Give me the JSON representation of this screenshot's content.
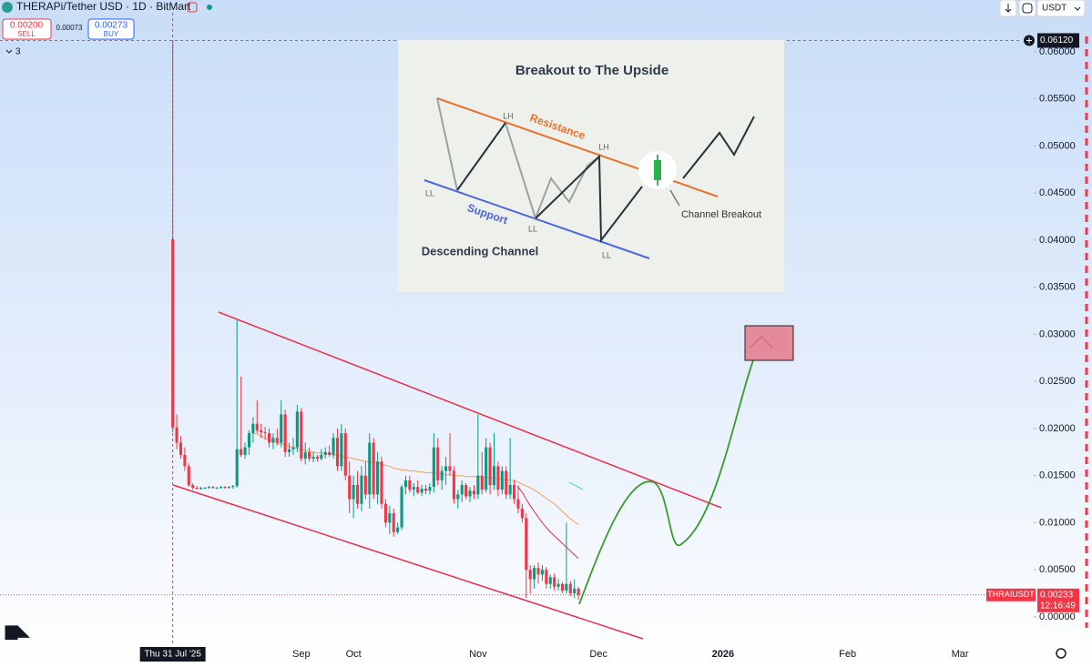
{
  "header": {
    "symbol_title": "THERAPi/Tether USD · 1D · BitMart",
    "sell_price": "0.00200",
    "sell_label": "SELL",
    "spread": "0.00073",
    "buy_price": "0.00273",
    "buy_label": "BUY",
    "indicator_count": "3",
    "currency": "USDT"
  },
  "inset": {
    "title": "Breakout to The Upside",
    "resistance": "Resistance",
    "support": "Support",
    "lh_1": "LH",
    "lh_2": "LH",
    "ll_1": "LL",
    "ll_2": "LL",
    "ll_3": "LL",
    "breakout": "Channel Breakout",
    "channel": "Descending Channel"
  },
  "chart_data": {
    "type": "candlestick",
    "up_color": "#089981",
    "down_color": "#f23645",
    "xlim": [
      -43,
      203
    ],
    "xticks": [
      {
        "value": 32,
        "label": "Sep"
      },
      {
        "value": 45,
        "label": "Oct"
      },
      {
        "value": 76,
        "label": "Nov"
      },
      {
        "value": 106,
        "label": "Dec"
      },
      {
        "value": 137,
        "label": "2026"
      },
      {
        "value": 168,
        "label": "Feb"
      },
      {
        "value": 196,
        "label": "Mar"
      }
    ],
    "ylim": [
      -0.0031,
      0.0615
    ],
    "yticks": [
      {
        "value": 0,
        "label": "0.00000"
      },
      {
        "value": 0.005,
        "label": "0.00500"
      },
      {
        "value": 0.01,
        "label": "0.01000"
      },
      {
        "value": 0.015,
        "label": "0.01500"
      },
      {
        "value": 0.02,
        "label": "0.02000"
      },
      {
        "value": 0.025,
        "label": "0.02500"
      },
      {
        "value": 0.03,
        "label": "0.03000"
      },
      {
        "value": 0.035,
        "label": "0.03500"
      },
      {
        "value": 0.04,
        "label": "0.04000"
      },
      {
        "value": 0.045,
        "label": "0.04500"
      },
      {
        "value": 0.05,
        "label": "0.05000"
      },
      {
        "value": 0.055,
        "label": "0.05500"
      },
      {
        "value": 0.06,
        "label": "0.06000"
      }
    ],
    "candles": [
      [
        0.0401,
        0.0612,
        0.0196,
        0.0201
      ],
      [
        0.0201,
        0.0215,
        0.0178,
        0.0185
      ],
      [
        0.0185,
        0.0192,
        0.0168,
        0.0172
      ],
      [
        0.0172,
        0.018,
        0.0155,
        0.016
      ],
      [
        0.016,
        0.0163,
        0.0138,
        0.014
      ],
      [
        0.014,
        0.0142,
        0.0135,
        0.0137
      ],
      [
        0.0137,
        0.0139,
        0.0135,
        0.0136
      ],
      [
        0.0136,
        0.0138,
        0.0135,
        0.0137
      ],
      [
        0.0137,
        0.0138,
        0.0136,
        0.0137
      ],
      [
        0.0137,
        0.0139,
        0.0136,
        0.0138
      ],
      [
        0.0138,
        0.0139,
        0.0136,
        0.0137
      ],
      [
        0.0137,
        0.0138,
        0.0136,
        0.0137
      ],
      [
        0.0137,
        0.0139,
        0.0136,
        0.0138
      ],
      [
        0.0138,
        0.0139,
        0.0136,
        0.0137
      ],
      [
        0.0137,
        0.0139,
        0.0136,
        0.0138
      ],
      [
        0.0138,
        0.014,
        0.0136,
        0.0139
      ],
      [
        0.0139,
        0.0315,
        0.0137,
        0.0178
      ],
      [
        0.0178,
        0.0255,
        0.017,
        0.0172
      ],
      [
        0.0172,
        0.0185,
        0.0168,
        0.018
      ],
      [
        0.018,
        0.0198,
        0.0172,
        0.0195
      ],
      [
        0.0195,
        0.0212,
        0.0185,
        0.0205
      ],
      [
        0.0205,
        0.023,
        0.0195,
        0.0198
      ],
      [
        0.0198,
        0.0205,
        0.019,
        0.0196
      ],
      [
        0.0196,
        0.0202,
        0.0188,
        0.0195
      ],
      [
        0.0195,
        0.02,
        0.018,
        0.0185
      ],
      [
        0.0185,
        0.0195,
        0.0178,
        0.019
      ],
      [
        0.019,
        0.02,
        0.0182,
        0.0185
      ],
      [
        0.0185,
        0.023,
        0.018,
        0.0215
      ],
      [
        0.0215,
        0.022,
        0.017,
        0.0175
      ],
      [
        0.0175,
        0.0185,
        0.017,
        0.0178
      ],
      [
        0.0178,
        0.019,
        0.0172,
        0.018
      ],
      [
        0.018,
        0.0225,
        0.0175,
        0.0218
      ],
      [
        0.0218,
        0.0222,
        0.0165,
        0.0168
      ],
      [
        0.0168,
        0.0185,
        0.0162,
        0.0175
      ],
      [
        0.0175,
        0.018,
        0.0165,
        0.0168
      ],
      [
        0.0168,
        0.0175,
        0.0164,
        0.017
      ],
      [
        0.017,
        0.0172,
        0.0165,
        0.0168
      ],
      [
        0.0168,
        0.0178,
        0.0166,
        0.0172
      ],
      [
        0.0172,
        0.018,
        0.0168,
        0.0175
      ],
      [
        0.0175,
        0.0182,
        0.017,
        0.0172
      ],
      [
        0.0172,
        0.0195,
        0.0168,
        0.019
      ],
      [
        0.019,
        0.02,
        0.0155,
        0.016
      ],
      [
        0.016,
        0.0205,
        0.0155,
        0.0195
      ],
      [
        0.0195,
        0.02,
        0.0145,
        0.015
      ],
      [
        0.015,
        0.0165,
        0.011,
        0.0125
      ],
      [
        0.0125,
        0.015,
        0.0105,
        0.014
      ],
      [
        0.014,
        0.0155,
        0.0115,
        0.012
      ],
      [
        0.012,
        0.016,
        0.0112,
        0.015
      ],
      [
        0.015,
        0.0165,
        0.0125,
        0.013
      ],
      [
        0.013,
        0.0195,
        0.0115,
        0.0185
      ],
      [
        0.0185,
        0.019,
        0.0125,
        0.013
      ],
      [
        0.013,
        0.0175,
        0.012,
        0.0165
      ],
      [
        0.0165,
        0.017,
        0.0115,
        0.012
      ],
      [
        0.012,
        0.0125,
        0.0095,
        0.01
      ],
      [
        0.01,
        0.0118,
        0.0088,
        0.011
      ],
      [
        0.011,
        0.0115,
        0.0085,
        0.009
      ],
      [
        0.009,
        0.01,
        0.0088,
        0.0095
      ],
      [
        0.0095,
        0.014,
        0.0092,
        0.0138
      ],
      [
        0.0138,
        0.015,
        0.013,
        0.0145
      ],
      [
        0.0145,
        0.015,
        0.0132,
        0.0135
      ],
      [
        0.0135,
        0.0142,
        0.0128,
        0.0138
      ],
      [
        0.0138,
        0.0145,
        0.013,
        0.0132
      ],
      [
        0.0132,
        0.014,
        0.0128,
        0.0136
      ],
      [
        0.0136,
        0.014,
        0.013,
        0.0134
      ],
      [
        0.0134,
        0.0142,
        0.013,
        0.0138
      ],
      [
        0.0138,
        0.0195,
        0.0132,
        0.018
      ],
      [
        0.018,
        0.019,
        0.014,
        0.0145
      ],
      [
        0.0145,
        0.016,
        0.0135,
        0.0155
      ],
      [
        0.0155,
        0.017,
        0.014,
        0.016
      ],
      [
        0.016,
        0.0195,
        0.015,
        0.0155
      ],
      [
        0.0155,
        0.016,
        0.012,
        0.0125
      ],
      [
        0.0125,
        0.0135,
        0.0115,
        0.013
      ],
      [
        0.013,
        0.0145,
        0.0122,
        0.014
      ],
      [
        0.014,
        0.0142,
        0.0125,
        0.0128
      ],
      [
        0.0128,
        0.0138,
        0.0122,
        0.0134
      ],
      [
        0.0134,
        0.014,
        0.0125,
        0.013
      ],
      [
        0.013,
        0.0215,
        0.0125,
        0.015
      ],
      [
        0.015,
        0.0175,
        0.013,
        0.0135
      ],
      [
        0.0135,
        0.019,
        0.0132,
        0.018
      ],
      [
        0.018,
        0.0185,
        0.013,
        0.014
      ],
      [
        0.014,
        0.0195,
        0.0135,
        0.016
      ],
      [
        0.016,
        0.0165,
        0.0128,
        0.0135
      ],
      [
        0.0135,
        0.016,
        0.013,
        0.0155
      ],
      [
        0.0155,
        0.016,
        0.0125,
        0.013
      ],
      [
        0.013,
        0.019,
        0.0125,
        0.014
      ],
      [
        0.014,
        0.0145,
        0.012,
        0.0125
      ],
      [
        0.0125,
        0.014,
        0.011,
        0.0115
      ],
      [
        0.0115,
        0.012,
        0.01,
        0.0105
      ],
      [
        0.0105,
        0.011,
        0.002,
        0.005
      ],
      [
        0.005,
        0.0055,
        0.0025,
        0.004
      ],
      [
        0.004,
        0.0055,
        0.003,
        0.0052
      ],
      [
        0.0052,
        0.0058,
        0.0035,
        0.0045
      ],
      [
        0.0045,
        0.0055,
        0.0038,
        0.005
      ],
      [
        0.005,
        0.0053,
        0.003,
        0.0035
      ],
      [
        0.0035,
        0.0045,
        0.003,
        0.0042
      ],
      [
        0.0042,
        0.0046,
        0.0028,
        0.0032
      ],
      [
        0.0032,
        0.004,
        0.0028,
        0.0035
      ],
      [
        0.0035,
        0.0037,
        0.0025,
        0.0028
      ],
      [
        0.0028,
        0.01,
        0.0025,
        0.0035
      ],
      [
        0.0035,
        0.0038,
        0.0022,
        0.0025
      ],
      [
        0.0025,
        0.004,
        0.002,
        0.003
      ],
      [
        0.003,
        0.0032,
        0.0018,
        0.00233
      ]
    ],
    "lines": [
      {
        "color": "#f0a05a",
        "values": [
          null,
          null,
          null,
          null,
          null,
          null,
          null,
          null,
          null,
          null,
          null,
          null,
          null,
          null,
          null,
          null,
          null,
          null,
          null,
          null,
          0.0195,
          0.0194,
          0.0192,
          0.019,
          0.0188,
          0.0186,
          0.0185,
          0.0184,
          0.0183,
          0.0181,
          0.018,
          0.0179,
          0.0178,
          0.0177,
          0.0176,
          0.0175,
          0.0174,
          0.0174,
          0.0173,
          0.0173,
          0.0172,
          0.0171,
          0.0171,
          0.017,
          0.0169,
          0.0168,
          0.0167,
          0.0166,
          0.0165,
          0.0165,
          0.0164,
          0.0163,
          0.0162,
          0.0161,
          0.016,
          0.0158,
          0.0157,
          0.0156,
          0.0156,
          0.0155,
          0.0155,
          0.0154,
          0.0154,
          0.0153,
          0.0153,
          0.0153,
          0.0152,
          0.0152,
          0.0151,
          0.0151,
          0.015,
          0.015,
          0.015,
          0.0149,
          0.0149,
          0.0149,
          0.0149,
          0.0148,
          0.0148,
          0.0148,
          0.0147,
          0.0147,
          0.0146,
          0.0146,
          0.0145,
          0.0145,
          0.0143,
          0.0141,
          0.0139,
          0.0137,
          0.0135,
          0.0132,
          0.0129,
          0.0126,
          0.0123,
          0.012,
          0.0116,
          0.0112,
          0.0108,
          0.0104,
          0.0101,
          0.0098
        ]
      },
      {
        "color": "#e0323f",
        "values": [
          null,
          null,
          null,
          null,
          null,
          null,
          null,
          null,
          null,
          null,
          null,
          null,
          null,
          null,
          null,
          null,
          null,
          null,
          null,
          null,
          null,
          null,
          null,
          null,
          null,
          null,
          null,
          null,
          null,
          null,
          null,
          null,
          null,
          null,
          null,
          null,
          null,
          null,
          null,
          null,
          null,
          null,
          null,
          null,
          null,
          null,
          null,
          null,
          null,
          null,
          null,
          null,
          null,
          null,
          null,
          null,
          null,
          null,
          null,
          null,
          null,
          null,
          null,
          null,
          null,
          null,
          null,
          null,
          null,
          null,
          null,
          null,
          null,
          null,
          null,
          null,
          null,
          null,
          null,
          null,
          null,
          null,
          null,
          null,
          null,
          null,
          0.0138,
          0.0132,
          0.0125,
          0.0118,
          0.0112,
          0.0106,
          0.01,
          0.0095,
          0.009,
          0.0086,
          0.0082,
          0.0078,
          0.0074,
          0.007,
          0.0066,
          0.0062
        ]
      }
    ],
    "crosshair": {
      "index": 0,
      "date": "Thu 31 Jul '25",
      "price": {
        "value": 0.0612,
        "label": "0.06120"
      }
    },
    "last_price": {
      "value": 0.00233,
      "label": "0.00233",
      "symbol": "THRAIUSDT",
      "countdown": "12:16:49"
    }
  }
}
